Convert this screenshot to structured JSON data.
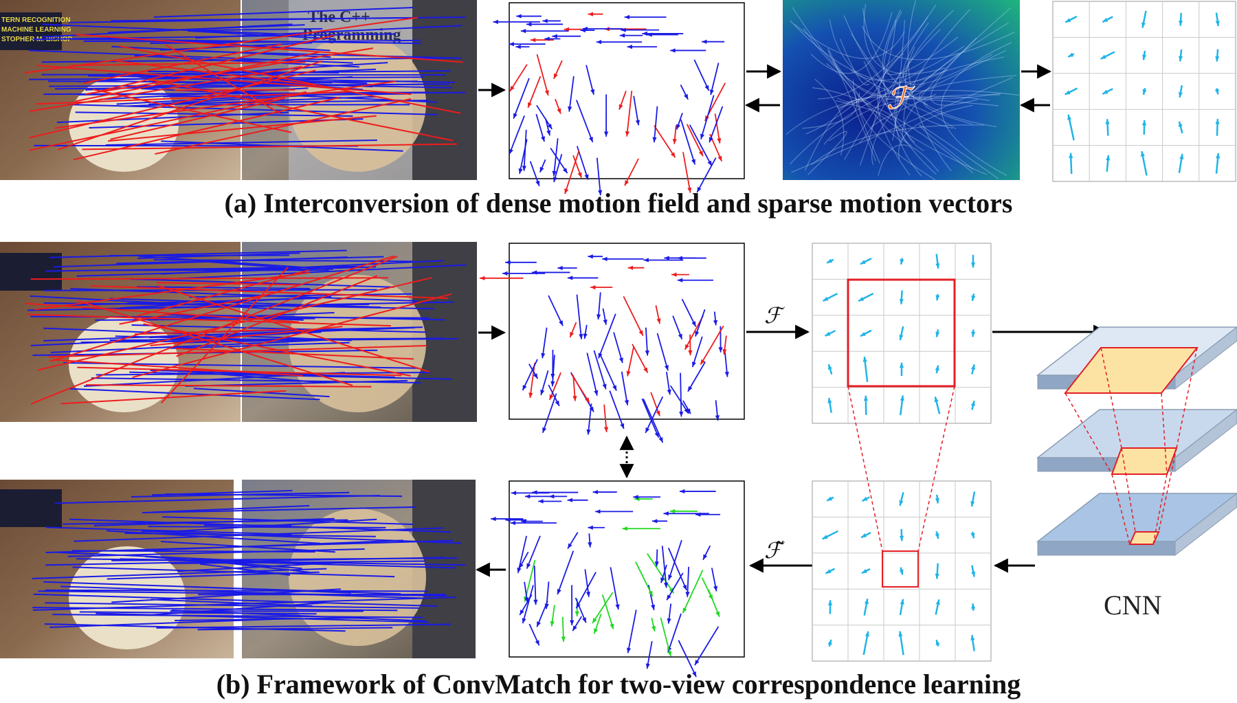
{
  "captions": {
    "a": "(a) Interconversion of dense motion field and sparse motion vectors",
    "b": "(b) Framework of ConvMatch for two-view correspondence learning"
  },
  "labels": {
    "field_symbol": "ℱ",
    "field_symbol_tilde": "ℱ̃",
    "cnn": "CNN",
    "book_title_1": "The C++",
    "book_title_2": "Programming",
    "book_left_1": "TERN RECOGNITION",
    "book_left_2": "MACHINE LEARNING",
    "book_left_3": "STOPHER M. BISHOP"
  },
  "colors": {
    "inlier": "#1a1ae6",
    "outlier": "#ee1c1c",
    "recovered": "#1fd81f",
    "grid_vector": "#1fb4e8",
    "window": "#e31e24",
    "cnn_layer_top": "#dde8f4",
    "cnn_layer_mid": "#c8d9ee",
    "cnn_layer_bot": "#a9c4e4",
    "cnn_receptive": "#fde3a3",
    "field_dark": "#0a1d8c",
    "field_light": "#1fb97a"
  },
  "icons": [
    "arrow-right-icon",
    "arrow-left-icon",
    "double-dotted-arrow-icon"
  ]
}
